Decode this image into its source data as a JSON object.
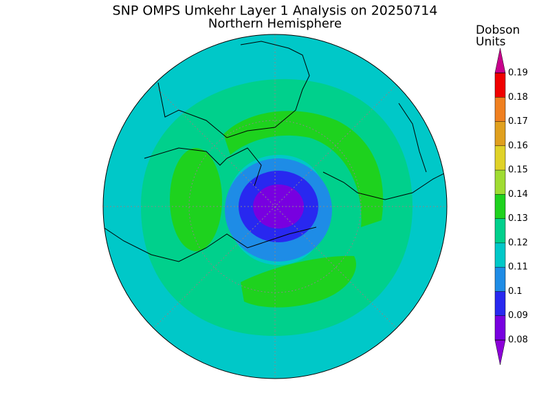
{
  "header": {
    "title": "SNP OMPS Umkehr Layer 1 Analysis on 20250714",
    "subtitle": "Northern Hemisphere"
  },
  "colorbar": {
    "label": [
      "Dobson",
      "Units"
    ],
    "ticks": [
      0.08,
      0.09,
      0.1,
      0.11,
      0.12,
      0.13,
      0.14,
      0.15,
      0.16,
      0.17,
      0.18,
      0.19
    ],
    "colors": [
      "#8c00d8",
      "#7800e0",
      "#2828f0",
      "#1e8ce6",
      "#00c8c8",
      "#00d08c",
      "#1ed21e",
      "#a0dc32",
      "#e0d228",
      "#e0a01e",
      "#f08020",
      "#f00000",
      "#c8008c"
    ]
  }
}
